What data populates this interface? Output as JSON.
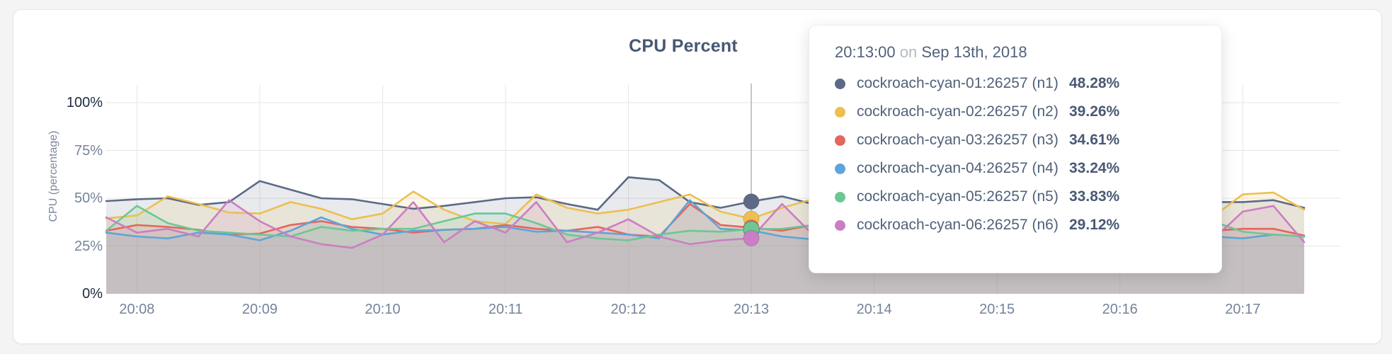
{
  "page": {
    "background": "#f4f4f5"
  },
  "card": {
    "background": "#ffffff",
    "border_color": "#e5e5e7"
  },
  "chart_data": {
    "type": "area",
    "title": "CPU Percent",
    "xlabel": "",
    "ylabel": "CPU (percentage)",
    "ylim": [
      0,
      100
    ],
    "grid": true,
    "legend_position": "none (values shown in hover tooltip)",
    "x_start": "20:07:45",
    "x_end": "20:17:30",
    "x_interval_seconds": 15,
    "x_ticks": [
      "20:08",
      "20:09",
      "20:10",
      "20:11",
      "20:12",
      "20:13",
      "20:14",
      "20:15",
      "20:16",
      "20:17"
    ],
    "y_tick_values": [
      0,
      25,
      50,
      75,
      100
    ],
    "y_tick_labels": [
      "0%",
      "25%",
      "50%",
      "75%",
      "100%"
    ],
    "area_fill_opacity": 0.14,
    "hover_time": "20:13:00",
    "hover_index": 21,
    "axis_tick_color": "#76839a",
    "axis_minmax_color": "#1d2940",
    "gridline_color": "#e8e6e3",
    "hover_line_color": "#b9b9b9",
    "series": [
      {
        "name": "cockroach-cyan-01:26257 (n1)",
        "node": "n1",
        "color": "#5c6a87",
        "values": [
          48.5,
          49.5,
          50,
          46.5,
          48,
          59,
          54.5,
          50,
          49.5,
          47,
          44.5,
          46,
          48,
          50,
          50.5,
          47,
          44,
          61,
          59.5,
          48,
          45,
          48.28,
          51,
          47,
          46,
          48,
          47,
          49,
          46.5,
          47.5,
          48,
          46,
          49,
          51,
          48,
          46.5,
          48,
          48,
          49,
          45
        ]
      },
      {
        "name": "cockroach-cyan-02:26257 (n2)",
        "node": "n2",
        "color": "#edbf4f",
        "values": [
          39.5,
          41,
          51,
          47,
          42.5,
          42,
          48,
          44.5,
          39,
          42,
          53.5,
          44,
          38,
          36.5,
          52,
          45,
          42,
          44,
          48,
          52,
          43,
          39.26,
          45,
          49.5,
          46,
          44,
          47,
          45,
          42,
          46,
          44.5,
          47,
          45,
          48,
          46,
          42.5,
          40,
          52,
          53,
          44
        ]
      },
      {
        "name": "cockroach-cyan-03:26257 (n3)",
        "node": "n3",
        "color": "#e2675e",
        "values": [
          33,
          36,
          35,
          33.5,
          31,
          31.5,
          36,
          38,
          35,
          34,
          32,
          33.5,
          34,
          36,
          34,
          33,
          35,
          31,
          30,
          47,
          36,
          34.61,
          33,
          36,
          32,
          33.5,
          34,
          32,
          35,
          33,
          34,
          32,
          33,
          34.5,
          33,
          35,
          33,
          34,
          34,
          30.5
        ]
      },
      {
        "name": "cockroach-cyan-04:26257 (n4)",
        "node": "n4",
        "color": "#5ea5d9",
        "values": [
          32,
          30,
          29,
          32,
          31,
          28,
          33,
          40,
          34,
          31,
          33,
          33.5,
          34,
          35,
          32.5,
          33,
          32,
          31,
          29,
          49,
          34,
          33.24,
          30,
          28.5,
          32,
          31,
          30,
          32,
          31.5,
          33,
          32,
          31,
          33,
          32,
          31,
          33,
          30,
          29,
          31,
          30
        ]
      },
      {
        "name": "cockroach-cyan-05:26257 (n5)",
        "node": "n5",
        "color": "#6cc793",
        "values": [
          33,
          46,
          37,
          33,
          32,
          31,
          30,
          35,
          33,
          34,
          34,
          38,
          42,
          42,
          37,
          31,
          29,
          28,
          31,
          33,
          32.5,
          33.83,
          34,
          36,
          35,
          34,
          33,
          35,
          34,
          32,
          33.5,
          34,
          35,
          33,
          34,
          32,
          38,
          32.5,
          31,
          30
        ]
      },
      {
        "name": "cockroach-cyan-06:26257 (n6)",
        "node": "n6",
        "color": "#cb7ec4",
        "values": [
          40,
          32,
          34,
          30,
          49,
          38,
          30,
          26,
          24,
          31,
          48,
          27,
          38,
          32,
          48,
          27,
          32,
          39,
          30,
          26,
          28,
          29.12,
          47,
          31,
          29,
          28,
          30,
          29,
          31,
          30,
          29,
          31,
          30,
          32,
          31,
          29,
          28,
          43,
          46,
          27
        ]
      }
    ]
  },
  "tooltip": {
    "time": "20:13:00",
    "on_word": "on",
    "date": "Sep 13th, 2018",
    "rows": [
      {
        "label": "cockroach-cyan-01:26257 (n1)",
        "value": "48.28%",
        "color": "#5c6a87"
      },
      {
        "label": "cockroach-cyan-02:26257 (n2)",
        "value": "39.26%",
        "color": "#edbf4f"
      },
      {
        "label": "cockroach-cyan-03:26257 (n3)",
        "value": "34.61%",
        "color": "#e2675e"
      },
      {
        "label": "cockroach-cyan-04:26257 (n4)",
        "value": "33.24%",
        "color": "#5ea5d9"
      },
      {
        "label": "cockroach-cyan-05:26257 (n5)",
        "value": "33.83%",
        "color": "#6cc793"
      },
      {
        "label": "cockroach-cyan-06:26257 (n6)",
        "value": "29.12%",
        "color": "#cb7ec4"
      }
    ]
  }
}
